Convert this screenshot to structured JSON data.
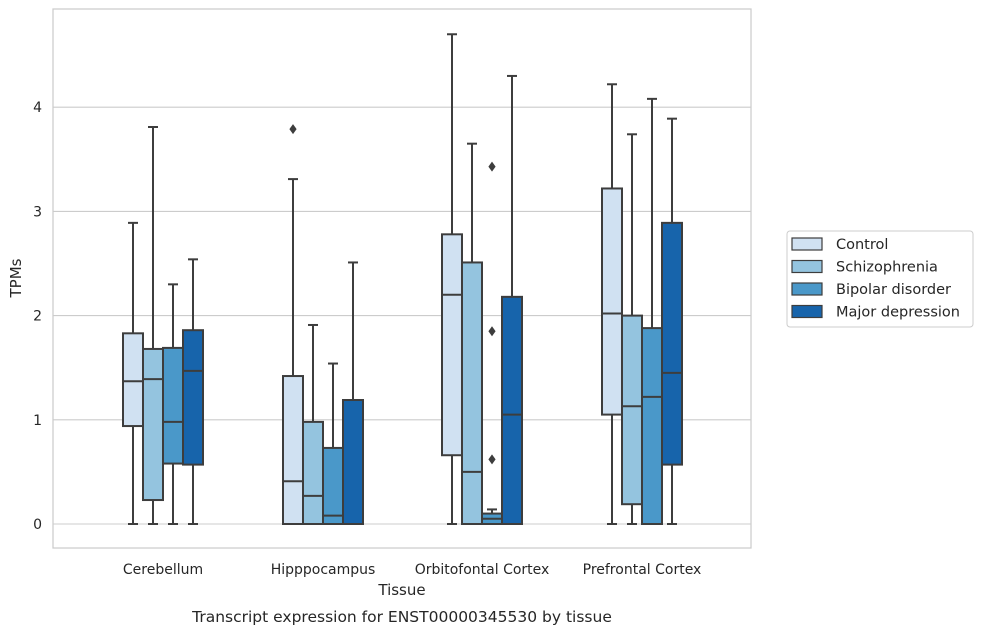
{
  "chart_data": {
    "type": "box",
    "title": "",
    "caption": "Transcript expression for ENST00000345530 by tissue",
    "xlabel": "Tissue",
    "ylabel": "TPMs",
    "ylim": [
      -0.22,
      5.0
    ],
    "yticks": [
      "0",
      "1",
      "2",
      "3",
      "4"
    ],
    "grid": "horizontal",
    "legend_position": "right",
    "categories": [
      "Cerebellum",
      "Hipppocampus",
      "Orbitofontal Cortex",
      "Prefrontal Cortex"
    ],
    "series": [
      {
        "name": "Control",
        "color": "#d0e1f2",
        "boxes": [
          {
            "min": 0.0,
            "q1": 0.94,
            "median": 1.37,
            "q3": 1.83,
            "max": 2.89,
            "outliers": []
          },
          {
            "min": 0.0,
            "q1": 0.0,
            "median": 0.41,
            "q3": 1.42,
            "max": 3.31,
            "outliers": [
              3.79
            ]
          },
          {
            "min": 0.0,
            "q1": 0.66,
            "median": 2.2,
            "q3": 2.78,
            "max": 4.7,
            "outliers": []
          },
          {
            "min": 0.0,
            "q1": 1.05,
            "median": 2.02,
            "q3": 3.22,
            "max": 4.22,
            "outliers": []
          }
        ]
      },
      {
        "name": "Schizophrenia",
        "color": "#94c4df",
        "boxes": [
          {
            "min": 0.0,
            "q1": 0.23,
            "median": 1.39,
            "q3": 1.68,
            "max": 3.81,
            "outliers": []
          },
          {
            "min": 0.0,
            "q1": 0.0,
            "median": 0.27,
            "q3": 0.98,
            "max": 1.91,
            "outliers": []
          },
          {
            "min": 0.0,
            "q1": 0.0,
            "median": 0.5,
            "q3": 2.51,
            "max": 3.65,
            "outliers": []
          },
          {
            "min": 0.0,
            "q1": 0.19,
            "median": 1.13,
            "q3": 2.0,
            "max": 3.74,
            "outliers": []
          }
        ]
      },
      {
        "name": "Bipolar disorder",
        "color": "#4a98c9",
        "boxes": [
          {
            "min": 0.0,
            "q1": 0.58,
            "median": 0.98,
            "q3": 1.69,
            "max": 2.3,
            "outliers": []
          },
          {
            "min": 0.0,
            "q1": 0.0,
            "median": 0.08,
            "q3": 0.73,
            "max": 1.54,
            "outliers": []
          },
          {
            "min": 0.0,
            "q1": 0.0,
            "median": 0.05,
            "q3": 0.1,
            "max": 0.14,
            "outliers": [
              0.62,
              1.85,
              3.43
            ]
          },
          {
            "min": 0.0,
            "q1": 0.0,
            "median": 1.22,
            "q3": 1.88,
            "max": 4.08,
            "outliers": []
          }
        ]
      },
      {
        "name": "Major depression",
        "color": "#1764ab",
        "boxes": [
          {
            "min": 0.0,
            "q1": 0.57,
            "median": 1.47,
            "q3": 1.86,
            "max": 2.54,
            "outliers": []
          },
          {
            "min": 0.0,
            "q1": 0.0,
            "median": 0.0,
            "q3": 1.19,
            "max": 2.51,
            "outliers": []
          },
          {
            "min": 0.0,
            "q1": 0.0,
            "median": 1.05,
            "q3": 2.18,
            "max": 4.3,
            "outliers": []
          },
          {
            "min": 0.0,
            "q1": 0.57,
            "median": 1.45,
            "q3": 2.89,
            "max": 3.89,
            "outliers": []
          }
        ]
      }
    ],
    "colors": {
      "grid": "#cccccc",
      "frame": "#cccccc",
      "lines": "#3d3d3d",
      "text": "#262626"
    }
  }
}
